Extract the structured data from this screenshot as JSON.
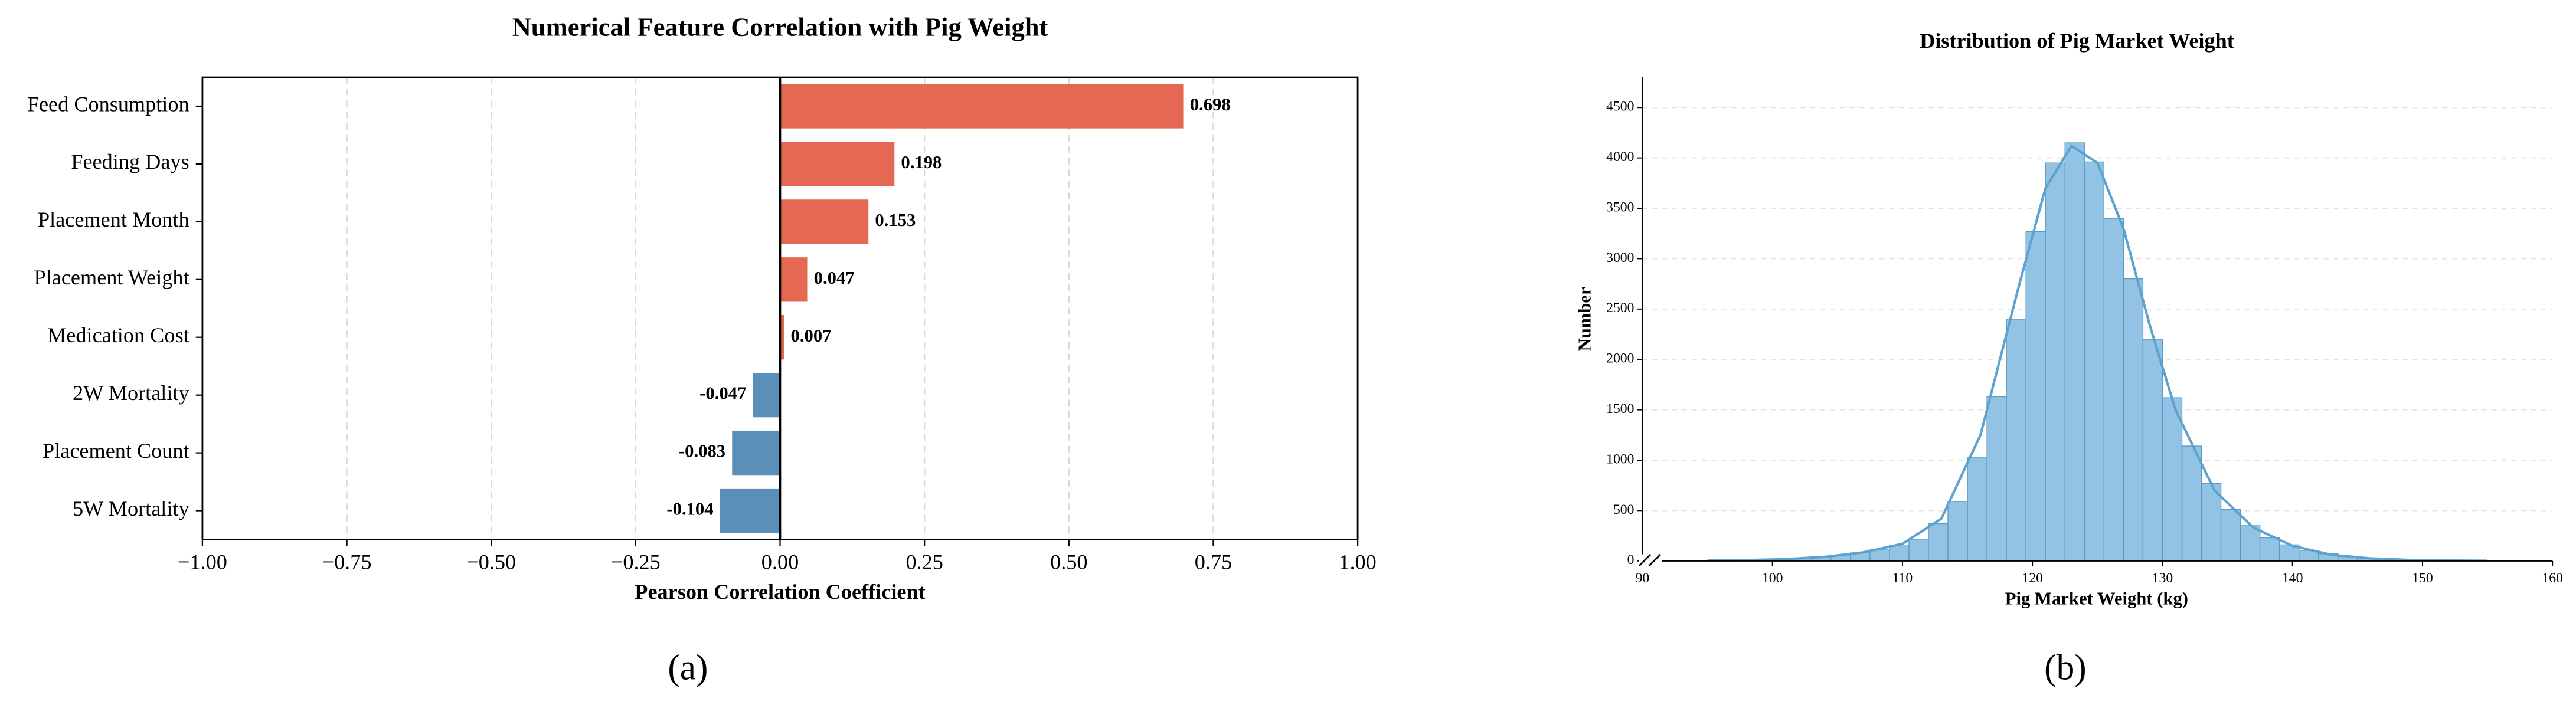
{
  "chart_data": [
    {
      "type": "barh",
      "title": "Numerical Feature Correlation with Pig Weight",
      "xlabel": "Pearson Correlation Coefficient",
      "caption": "(a)",
      "categories": [
        "Feed Consumption",
        "Feeding Days",
        "Placement Month",
        "Placement Weight",
        "Medication Cost",
        "2W Mortality",
        "Placement Count",
        "5W Mortality"
      ],
      "values": [
        0.698,
        0.198,
        0.153,
        0.047,
        0.007,
        -0.047,
        -0.083,
        -0.104
      ],
      "positive_color": "#e56853",
      "negative_color": "#5a8fba",
      "xlim": [
        -1,
        1
      ],
      "xticks": [
        {
          "value": -1,
          "label": "−1.00"
        },
        {
          "value": -0.75,
          "label": "−0.75"
        },
        {
          "value": -0.5,
          "label": "−0.50"
        },
        {
          "value": -0.25,
          "label": "−0.25"
        },
        {
          "value": 0,
          "label": "0.00"
        },
        {
          "value": 0.25,
          "label": "0.25"
        },
        {
          "value": 0.5,
          "label": "0.50"
        },
        {
          "value": 0.75,
          "label": "0.75"
        },
        {
          "value": 1,
          "label": "1.00"
        }
      ],
      "grid": true
    },
    {
      "type": "histogram",
      "title": "Distribution of Pig Market Weight",
      "xlabel": "Pig Market Weight (kg)",
      "ylabel": "Number",
      "caption": "(b)",
      "color": "#93c3e4",
      "edge_color": "#5a9bc4",
      "bins": [
        94,
        95.5,
        97,
        98.5,
        100,
        101.5,
        103,
        104.5,
        106,
        107.5,
        109,
        110.5,
        112,
        113.5,
        115,
        116.5,
        118,
        119.5,
        121,
        122.5,
        124,
        125.5,
        127,
        128.5,
        130,
        131.5,
        133,
        134.5,
        136,
        137.5,
        139,
        140.5,
        142,
        143.5,
        145,
        146.5,
        148,
        149.5,
        151,
        152.5,
        154,
        155.5,
        157
      ],
      "values": [
        3,
        5,
        8,
        12,
        18,
        28,
        40,
        58,
        80,
        110,
        150,
        210,
        370,
        590,
        1030,
        1630,
        2400,
        3270,
        3950,
        4150,
        3960,
        3400,
        2800,
        2200,
        1620,
        1140,
        770,
        510,
        350,
        230,
        160,
        105,
        70,
        45,
        30,
        20,
        13,
        8,
        5,
        3,
        2,
        1
      ],
      "kde": {
        "color": "#5ea3cd",
        "x": [
          95,
          98,
          101,
          104,
          107,
          110,
          113,
          116,
          119,
          121,
          123,
          125,
          127,
          129,
          131,
          134,
          137,
          140,
          143,
          146,
          149,
          152,
          155
        ],
        "values": [
          3,
          8,
          18,
          40,
          85,
          170,
          420,
          1250,
          2750,
          3700,
          4120,
          3950,
          3300,
          2350,
          1500,
          700,
          330,
          150,
          60,
          25,
          10,
          4,
          2
        ]
      },
      "xlim": [
        90,
        160
      ],
      "xticks": [
        90,
        100,
        110,
        120,
        130,
        140,
        150,
        160
      ],
      "ylim": [
        0,
        4800
      ],
      "yticks": [
        0,
        500,
        1000,
        1500,
        2000,
        2500,
        3000,
        3500,
        4000,
        4500
      ],
      "grid": true
    }
  ]
}
